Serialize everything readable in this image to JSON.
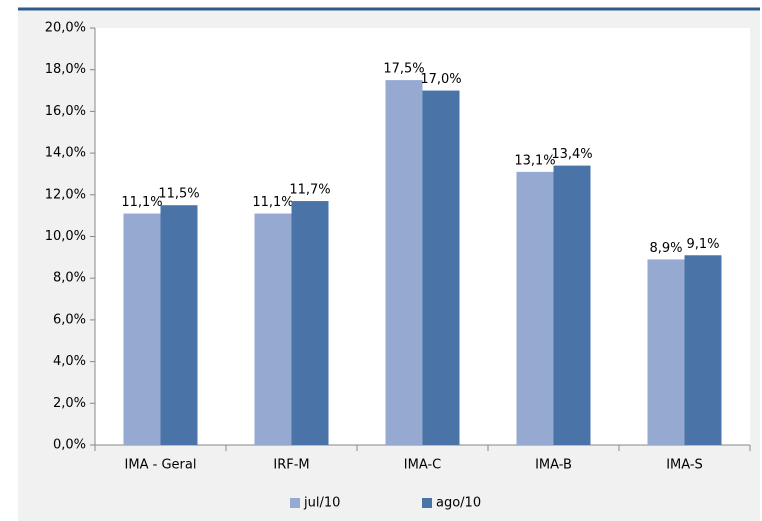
{
  "chart_data": {
    "type": "bar",
    "categories": [
      "IMA - Geral",
      "IRF-M",
      "IMA-C",
      "IMA-B",
      "IMA-S"
    ],
    "series": [
      {
        "name": "jul/10",
        "color": "#95a9d1",
        "values": [
          11.1,
          11.1,
          17.5,
          13.1,
          8.9
        ],
        "value_labels": [
          "11,1%",
          "11,1%",
          "17,5%",
          "13,1%",
          "8,9%"
        ]
      },
      {
        "name": "ago/10",
        "color": "#4a73a8",
        "values": [
          11.5,
          11.7,
          17.0,
          13.4,
          9.1
        ],
        "value_labels": [
          "11,5%",
          "11,7%",
          "17,0%",
          "13,4%",
          "9,1%"
        ]
      }
    ],
    "ylim": [
      0,
      20
    ],
    "yticks": [
      {
        "value": 0,
        "label": "0,0%"
      },
      {
        "value": 2,
        "label": "2,0%"
      },
      {
        "value": 4,
        "label": "4,0%"
      },
      {
        "value": 6,
        "label": "6,0%"
      },
      {
        "value": 8,
        "label": "8,0%"
      },
      {
        "value": 10,
        "label": "10,0%"
      },
      {
        "value": 12,
        "label": "12,0%"
      },
      {
        "value": 14,
        "label": "14,0%"
      },
      {
        "value": 16,
        "label": "16,0%"
      },
      {
        "value": 18,
        "label": "18,0%"
      },
      {
        "value": 20,
        "label": "20,0%"
      }
    ],
    "grid": false,
    "legend": "bottom"
  }
}
